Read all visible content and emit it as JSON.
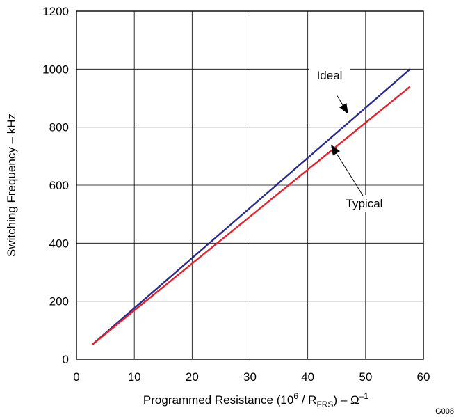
{
  "chart_data": {
    "type": "line",
    "xlabel": {
      "main": "Programmed Resistance (10",
      "sup1": "6",
      "mid": " / R",
      "sub": "FRS",
      "end": ") – Ω",
      "sup2": "–1"
    },
    "ylabel": "Switching Frequency – kHz",
    "xlim": [
      0,
      60
    ],
    "ylim": [
      0,
      1200
    ],
    "xticks": [
      0,
      10,
      20,
      30,
      40,
      50,
      60
    ],
    "yticks": [
      0,
      200,
      400,
      600,
      800,
      1000,
      1200
    ],
    "grid": true,
    "series": [
      {
        "name": "Ideal",
        "color": "#2b2b8f",
        "x": [
          2.7,
          57.7
        ],
        "y": [
          50,
          1000
        ]
      },
      {
        "name": "Typical",
        "color": "#e8202a",
        "x": [
          2.7,
          57.7
        ],
        "y": [
          50,
          940
        ]
      }
    ],
    "annotations": [
      {
        "text": "Ideal",
        "arrow_to": [
          47,
          845
        ]
      },
      {
        "text": "Typical",
        "arrow_to": [
          44,
          740
        ]
      }
    ],
    "figure_id": "G008"
  }
}
